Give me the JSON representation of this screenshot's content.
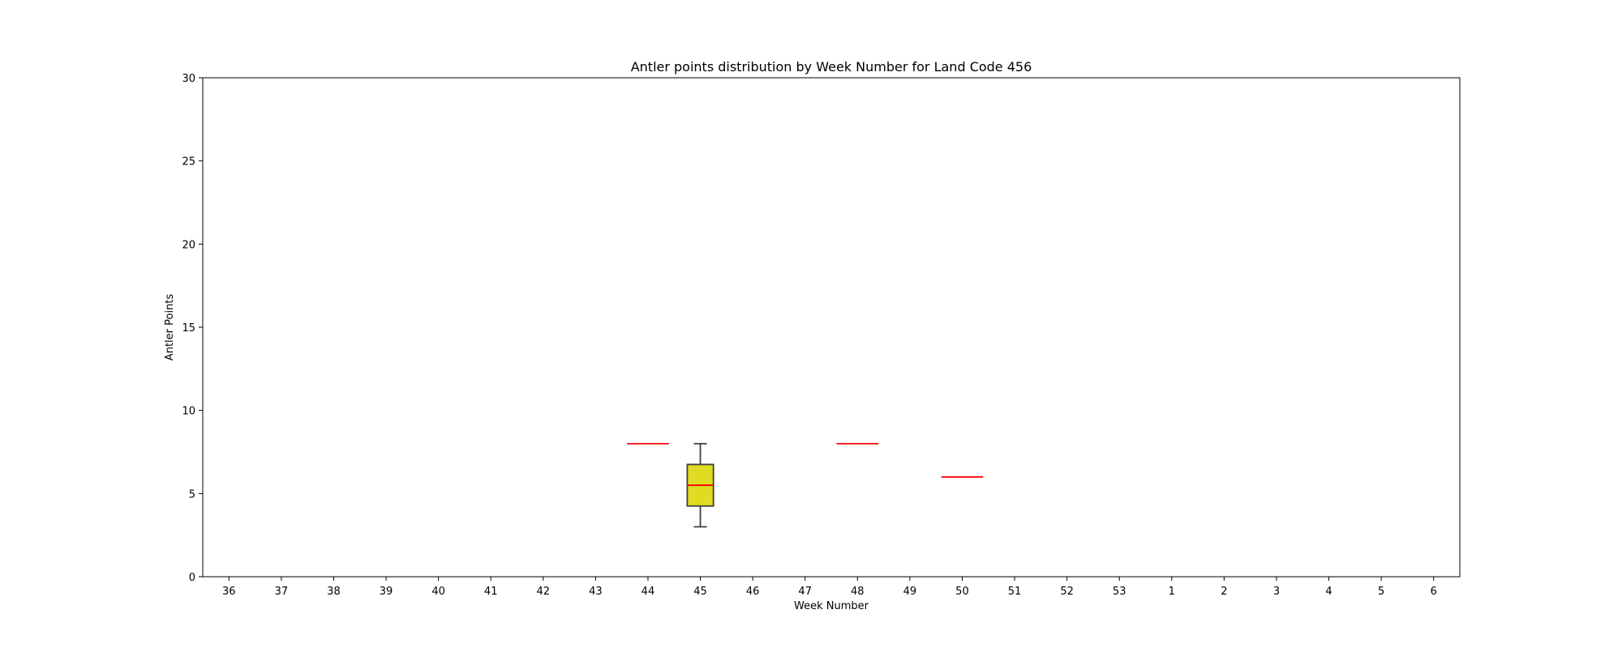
{
  "chart_data": {
    "type": "box",
    "title": "Antler points distribution by Week Number for Land Code 456",
    "xlabel": "Week Number",
    "ylabel": "Antler Points",
    "ylim": [
      0,
      30
    ],
    "yticks": [
      0,
      5,
      10,
      15,
      20,
      25,
      30
    ],
    "categories": [
      "36",
      "37",
      "38",
      "39",
      "40",
      "41",
      "42",
      "43",
      "44",
      "45",
      "46",
      "47",
      "48",
      "49",
      "50",
      "51",
      "52",
      "53",
      "1",
      "2",
      "3",
      "4",
      "5",
      "6"
    ],
    "boxes": [
      {
        "category": "44",
        "min": 8,
        "q1": 8,
        "median": 8,
        "q3": 8,
        "max": 8
      },
      {
        "category": "45",
        "min": 3,
        "q1": 4.25,
        "median": 5.5,
        "q3": 6.75,
        "max": 8
      },
      {
        "category": "48",
        "min": 8,
        "q1": 8,
        "median": 8,
        "q3": 8,
        "max": 8
      },
      {
        "category": "50",
        "min": 6,
        "q1": 6,
        "median": 6,
        "q3": 6,
        "max": 6
      }
    ],
    "grid": false,
    "colors": {
      "box_fill": "#dfdc23",
      "box_edge": "#3f3f3f",
      "median": "#ff0000",
      "axes": "#000000"
    }
  }
}
